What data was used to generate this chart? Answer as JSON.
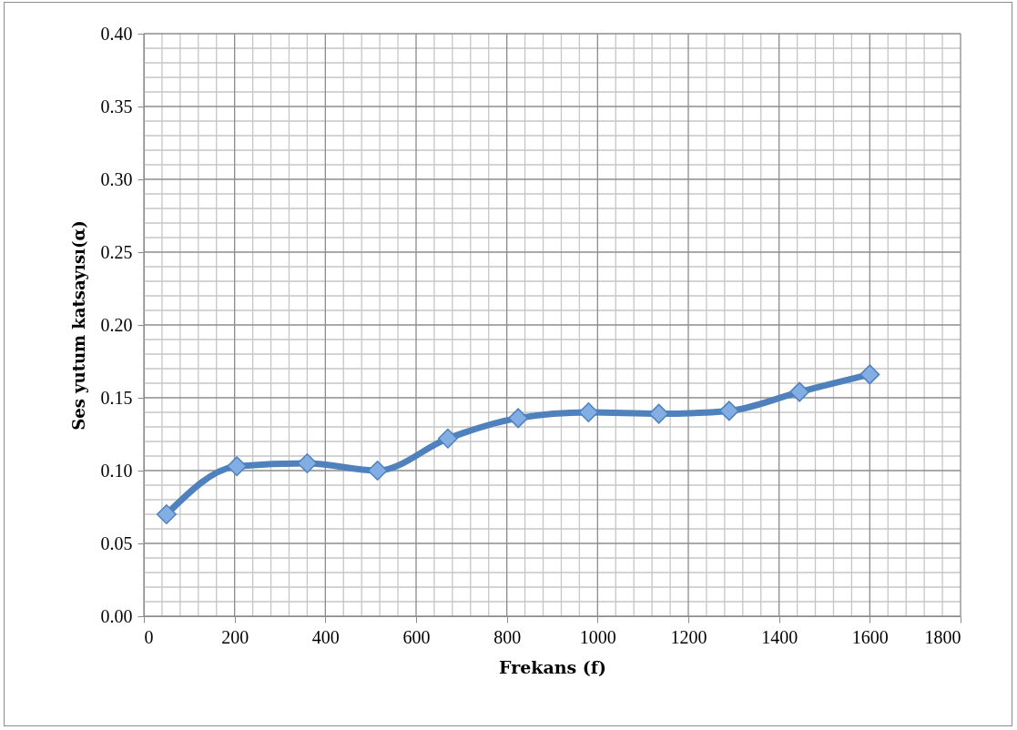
{
  "chart_data": {
    "type": "line",
    "xlabel": "Frekans (f)",
    "ylabel": "Ses yutum katsayısı(α)",
    "x": [
      50,
      205,
      360,
      515,
      670,
      825,
      980,
      1135,
      1290,
      1445,
      1600
    ],
    "series": [
      {
        "color": "#4f81bd",
        "values": [
          0.07,
          0.103,
          0.105,
          0.1,
          0.122,
          0.136,
          0.14,
          0.139,
          0.141,
          0.154,
          0.166
        ]
      }
    ],
    "xlim": [
      0,
      1800
    ],
    "xticks": [
      0,
      {
        "value": 40,
        "label": null
      },
      {
        "value": 80,
        "label": null
      },
      {
        "value": 120,
        "label": null
      },
      {
        "value": 160,
        "label": null
      },
      200,
      {
        "value": 240,
        "label": null
      },
      {
        "value": 280,
        "label": null
      },
      {
        "value": 320,
        "label": null
      },
      {
        "value": 360,
        "label": null
      },
      400,
      {
        "value": 440,
        "label": null
      },
      {
        "value": 480,
        "label": null
      },
      {
        "value": 520,
        "label": null
      },
      {
        "value": 560,
        "label": null
      },
      600,
      {
        "value": 640,
        "label": null
      },
      {
        "value": 680,
        "label": null
      },
      {
        "value": 720,
        "label": null
      },
      {
        "value": 760,
        "label": null
      },
      800,
      {
        "value": 840,
        "label": null
      },
      {
        "value": 880,
        "label": null
      },
      {
        "value": 920,
        "label": null
      },
      {
        "value": 960,
        "label": null
      },
      1000,
      {
        "value": 1040,
        "label": null
      },
      {
        "value": 1080,
        "label": null
      },
      {
        "value": 1120,
        "label": null
      },
      {
        "value": 1160,
        "label": null
      },
      1200,
      {
        "value": 1240,
        "label": null
      },
      {
        "value": 1280,
        "label": null
      },
      {
        "value": 1320,
        "label": null
      },
      {
        "value": 1360,
        "label": null
      },
      1400,
      {
        "value": 1440,
        "label": null
      },
      {
        "value": 1480,
        "label": null
      },
      {
        "value": 1520,
        "label": null
      },
      {
        "value": 1560,
        "label": null
      },
      1600,
      {
        "value": 1640,
        "label": null
      },
      {
        "value": 1680,
        "label": null
      },
      {
        "value": 1720,
        "label": null
      },
      {
        "value": 1760,
        "label": null
      },
      1800
    ],
    "ylim": [
      0,
      0.4
    ],
    "yticks": [
      {
        "value": 0,
        "label": "0.00"
      },
      {
        "value": 0.01,
        "label": null
      },
      {
        "value": 0.02,
        "label": null
      },
      {
        "value": 0.03,
        "label": null
      },
      {
        "value": 0.04,
        "label": null
      },
      {
        "value": 0.05,
        "label": "0.05"
      },
      {
        "value": 0.06,
        "label": null
      },
      {
        "value": 0.07,
        "label": null
      },
      {
        "value": 0.08,
        "label": null
      },
      {
        "value": 0.09,
        "label": null
      },
      {
        "value": 0.1,
        "label": "0.10"
      },
      {
        "value": 0.11,
        "label": null
      },
      {
        "value": 0.12,
        "label": null
      },
      {
        "value": 0.13,
        "label": null
      },
      {
        "value": 0.14,
        "label": null
      },
      {
        "value": 0.15,
        "label": "0.15"
      },
      {
        "value": 0.16,
        "label": null
      },
      {
        "value": 0.17,
        "label": null
      },
      {
        "value": 0.18,
        "label": null
      },
      {
        "value": 0.19,
        "label": null
      },
      {
        "value": 0.2,
        "label": "0.20"
      },
      {
        "value": 0.21,
        "label": null
      },
      {
        "value": 0.22,
        "label": null
      },
      {
        "value": 0.23,
        "label": null
      },
      {
        "value": 0.24,
        "label": null
      },
      {
        "value": 0.25,
        "label": "0.25"
      },
      {
        "value": 0.26,
        "label": null
      },
      {
        "value": 0.27,
        "label": null
      },
      {
        "value": 0.28,
        "label": null
      },
      {
        "value": 0.29,
        "label": null
      },
      {
        "value": 0.3,
        "label": "0.30"
      },
      {
        "value": 0.31,
        "label": null
      },
      {
        "value": 0.32,
        "label": null
      },
      {
        "value": 0.33,
        "label": null
      },
      {
        "value": 0.34,
        "label": null
      },
      {
        "value": 0.35,
        "label": "0.35"
      },
      {
        "value": 0.36,
        "label": null
      },
      {
        "value": 0.37,
        "label": null
      },
      {
        "value": 0.38,
        "label": null
      },
      {
        "value": 0.39,
        "label": null
      },
      {
        "value": 0.4,
        "label": "0.40"
      }
    ],
    "grid": true,
    "marker": "diamond",
    "line_style": "solid"
  }
}
